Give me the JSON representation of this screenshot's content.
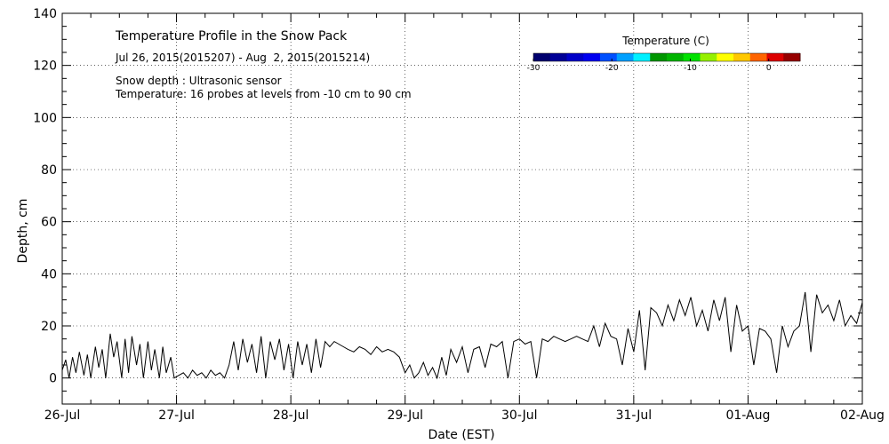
{
  "chart_data": {
    "type": "line",
    "title": "Temperature Profile in the Snow Pack",
    "subtitle": "Jul 26, 2015(2015207) - Aug  2, 2015(2015214)",
    "notes": [
      "Snow depth : Ultrasonic sensor",
      "Temperature: 16 probes at levels from -10 cm to 90 cm"
    ],
    "xlabel": "Date (EST)",
    "ylabel": "Depth, cm",
    "xlim": [
      0,
      7
    ],
    "ylim": [
      -10,
      140
    ],
    "x_ticks": [
      {
        "value": 0,
        "label": "26-Jul"
      },
      {
        "value": 1,
        "label": "27-Jul"
      },
      {
        "value": 2,
        "label": "28-Jul"
      },
      {
        "value": 3,
        "label": "29-Jul"
      },
      {
        "value": 4,
        "label": "30-Jul"
      },
      {
        "value": 5,
        "label": "31-Jul"
      },
      {
        "value": 6,
        "label": "01-Aug"
      },
      {
        "value": 7,
        "label": "02-Aug"
      }
    ],
    "y_ticks": [
      0,
      20,
      40,
      60,
      80,
      100,
      120,
      140
    ],
    "grid": true,
    "series": [
      {
        "color": "#000000",
        "x": [
          0.0,
          0.03,
          0.06,
          0.09,
          0.12,
          0.15,
          0.19,
          0.22,
          0.25,
          0.29,
          0.32,
          0.35,
          0.38,
          0.42,
          0.45,
          0.48,
          0.52,
          0.55,
          0.58,
          0.61,
          0.65,
          0.68,
          0.71,
          0.75,
          0.78,
          0.81,
          0.85,
          0.88,
          0.91,
          0.95,
          0.98,
          1.02,
          1.06,
          1.1,
          1.14,
          1.18,
          1.22,
          1.26,
          1.3,
          1.34,
          1.38,
          1.42,
          1.46,
          1.5,
          1.54,
          1.58,
          1.62,
          1.66,
          1.7,
          1.74,
          1.78,
          1.82,
          1.86,
          1.9,
          1.94,
          1.98,
          2.02,
          2.06,
          2.1,
          2.14,
          2.18,
          2.22,
          2.26,
          2.3,
          2.34,
          2.38,
          2.42,
          2.46,
          2.5,
          2.55,
          2.6,
          2.65,
          2.7,
          2.75,
          2.8,
          2.85,
          2.9,
          2.95,
          3.0,
          3.04,
          3.08,
          3.12,
          3.16,
          3.2,
          3.24,
          3.28,
          3.32,
          3.36,
          3.4,
          3.45,
          3.5,
          3.55,
          3.6,
          3.65,
          3.7,
          3.75,
          3.8,
          3.85,
          3.9,
          3.95,
          4.0,
          4.05,
          4.1,
          4.15,
          4.2,
          4.25,
          4.3,
          4.35,
          4.4,
          4.45,
          4.5,
          4.55,
          4.6,
          4.65,
          4.7,
          4.75,
          4.8,
          4.85,
          4.9,
          4.95,
          5.0,
          5.05,
          5.1,
          5.15,
          5.2,
          5.25,
          5.3,
          5.35,
          5.4,
          5.45,
          5.5,
          5.55,
          5.6,
          5.65,
          5.7,
          5.75,
          5.8,
          5.85,
          5.9,
          5.95,
          6.0,
          6.05,
          6.1,
          6.15,
          6.2,
          6.25,
          6.3,
          6.35,
          6.4,
          6.45,
          6.5,
          6.55,
          6.6,
          6.65,
          6.7,
          6.75,
          6.8,
          6.85,
          6.9,
          6.95,
          7.0
        ],
        "y": [
          3,
          7,
          0,
          8,
          2,
          10,
          1,
          9,
          0,
          12,
          4,
          11,
          0,
          17,
          8,
          14,
          0,
          15,
          2,
          16,
          5,
          13,
          0,
          14,
          3,
          11,
          0,
          12,
          2,
          8,
          0,
          1,
          2,
          0,
          3,
          1,
          2,
          0,
          3,
          1,
          2,
          0,
          5,
          14,
          3,
          15,
          6,
          13,
          2,
          16,
          0,
          14,
          7,
          15,
          3,
          13,
          0,
          14,
          5,
          13,
          2,
          15,
          4,
          14,
          12,
          14,
          13,
          12,
          11,
          10,
          12,
          11,
          9,
          12,
          10,
          11,
          10,
          8,
          2,
          5,
          0,
          2,
          6,
          1,
          4,
          0,
          8,
          1,
          11,
          6,
          12,
          2,
          11,
          12,
          4,
          13,
          12,
          14,
          0,
          14,
          15,
          13,
          14,
          0,
          15,
          14,
          16,
          15,
          14,
          15,
          16,
          15,
          14,
          20,
          12,
          21,
          16,
          15,
          5,
          19,
          10,
          26,
          3,
          27,
          25,
          20,
          28,
          22,
          30,
          24,
          31,
          20,
          26,
          18,
          30,
          22,
          31,
          10,
          28,
          18,
          20,
          5,
          19,
          18,
          15,
          2,
          20,
          12,
          18,
          20,
          33,
          10,
          32,
          25,
          28,
          22,
          30,
          20,
          24,
          21,
          29
        ]
      }
    ],
    "colorbar": {
      "label": "Temperature (C)",
      "range": [
        -30,
        4
      ],
      "ticks": [
        -30,
        -20,
        -10,
        0
      ],
      "colors": [
        "#00006e",
        "#000096",
        "#0000c8",
        "#0000f0",
        "#0050ff",
        "#00a0ff",
        "#00f0ff",
        "#009600",
        "#00b400",
        "#00e100",
        "#96f000",
        "#ffff00",
        "#ffc800",
        "#ff6400",
        "#dc0000",
        "#960000"
      ]
    }
  }
}
